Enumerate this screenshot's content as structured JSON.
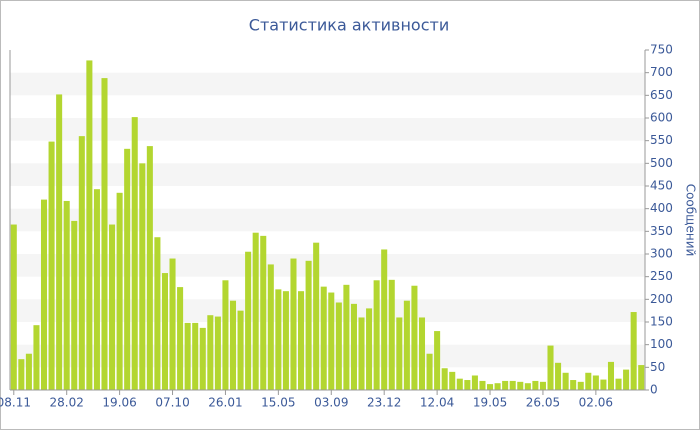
{
  "chart_data": {
    "type": "bar",
    "title": "Статистика активности",
    "y_label": "Сообщений",
    "y_axis_side": "right",
    "categories": [
      "08.11",
      null,
      null,
      null,
      null,
      null,
      null,
      "28.02",
      null,
      null,
      null,
      null,
      null,
      null,
      "19.06",
      null,
      null,
      null,
      null,
      null,
      null,
      "07.10",
      null,
      null,
      null,
      null,
      null,
      null,
      "26.01",
      null,
      null,
      null,
      null,
      null,
      null,
      "15.05",
      null,
      null,
      null,
      null,
      null,
      null,
      "03.09",
      null,
      null,
      null,
      null,
      null,
      null,
      "23.12",
      null,
      null,
      null,
      null,
      null,
      null,
      "12.04",
      null,
      null,
      null,
      null,
      null,
      null,
      "19.05",
      null,
      null,
      null,
      null,
      null,
      null,
      "26.05",
      null,
      null,
      null,
      null,
      null,
      null,
      "02.06",
      null,
      null,
      null,
      null,
      null,
      null
    ],
    "values": [
      365,
      68,
      80,
      143,
      420,
      548,
      652,
      417,
      373,
      560,
      727,
      443,
      688,
      365,
      435,
      532,
      602,
      500,
      538,
      337,
      258,
      290,
      227,
      148,
      148,
      137,
      165,
      162,
      242,
      197,
      175,
      305,
      347,
      340,
      277,
      222,
      218,
      290,
      218,
      285,
      325,
      228,
      215,
      193,
      232,
      190,
      160,
      180,
      242,
      310,
      243,
      160,
      197,
      230,
      160,
      80,
      130,
      48,
      40,
      25,
      22,
      32,
      20,
      13,
      15,
      20,
      20,
      18,
      15,
      20,
      18,
      98,
      60,
      38,
      22,
      18,
      38,
      32,
      23,
      62,
      25,
      45,
      172,
      55
    ],
    "color": "#b3d630",
    "ylim": [
      0,
      750
    ],
    "yticks": [
      0,
      50,
      100,
      150,
      200,
      250,
      300,
      350,
      400,
      450,
      500,
      550,
      600,
      650,
      700,
      750
    ],
    "grid": true
  }
}
